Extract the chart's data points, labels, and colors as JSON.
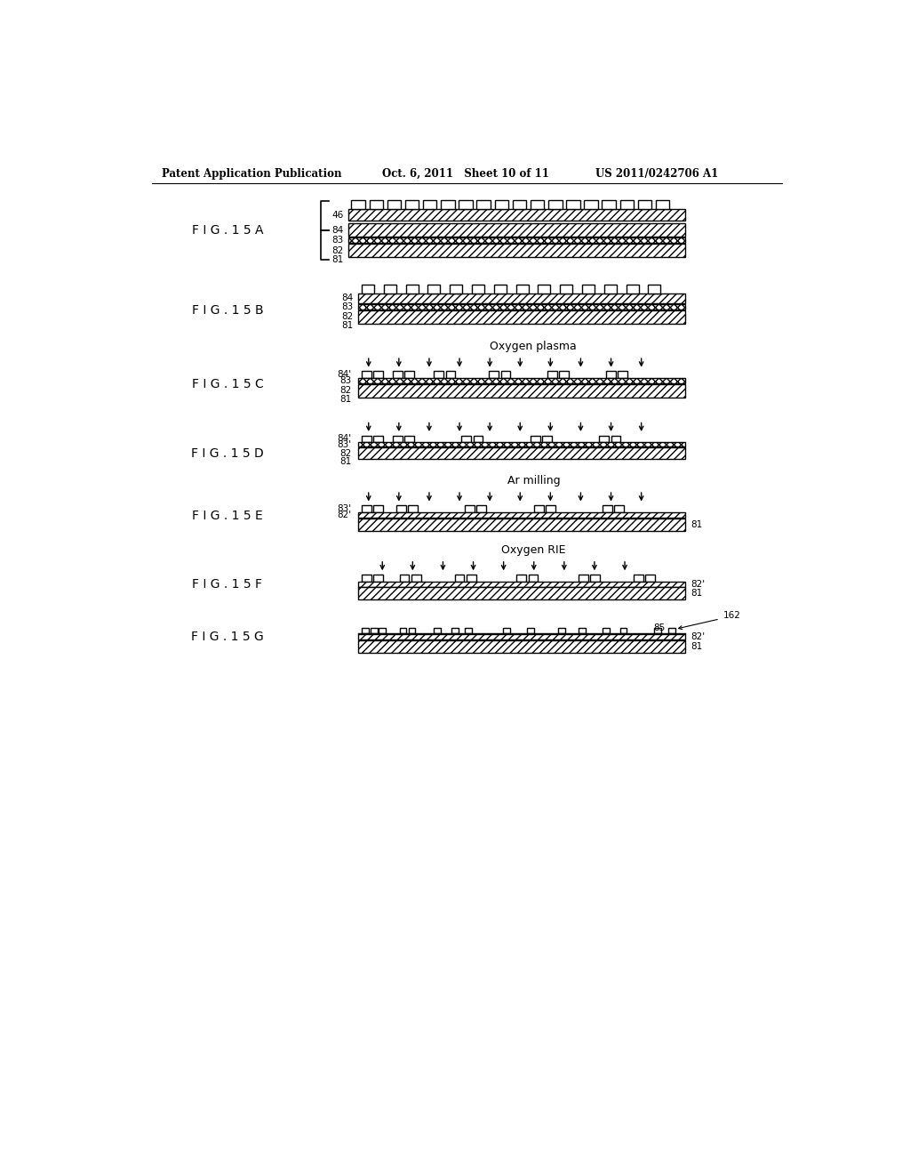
{
  "background_color": "#ffffff",
  "header_left": "Patent Application Publication",
  "header_mid": "Oct. 6, 2011   Sheet 10 of 11",
  "header_right": "US 2011/0242706 A1",
  "line_color": "#000000"
}
